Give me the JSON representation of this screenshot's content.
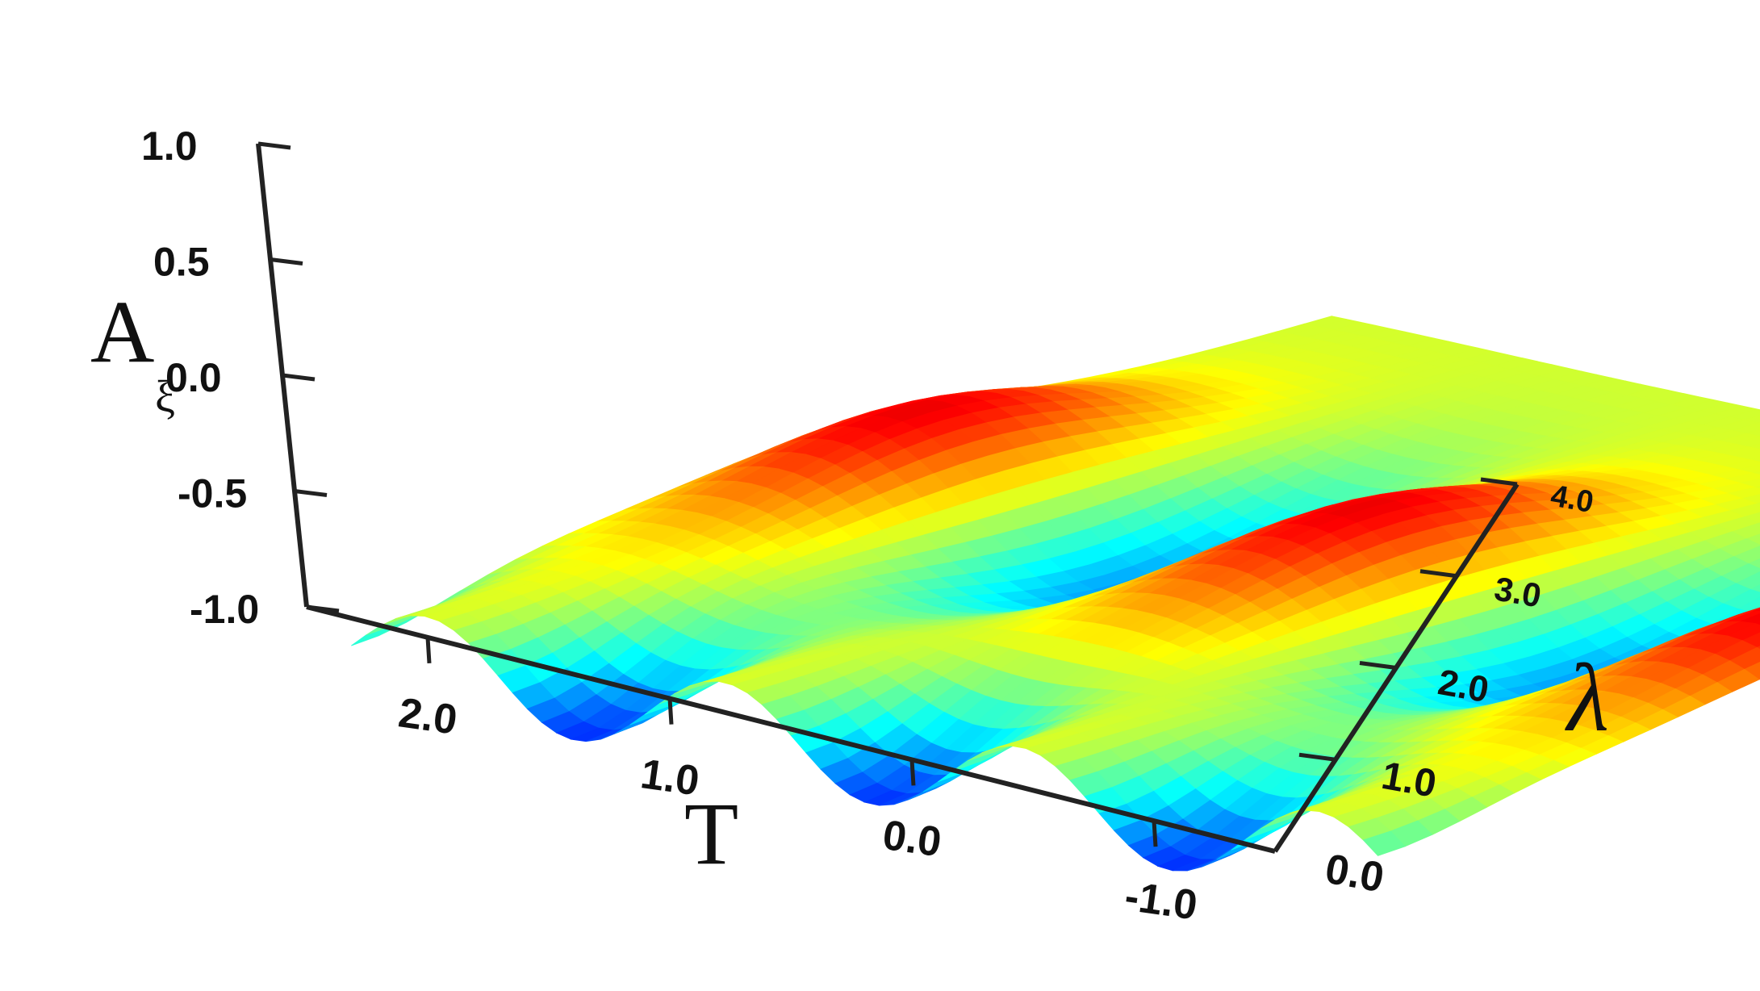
{
  "chart_data": {
    "type": "surface",
    "axes": {
      "z": {
        "label_main": "A",
        "label_sub": "ξ",
        "range": [
          -1.0,
          1.0
        ],
        "ticks": [
          {
            "value": -1.0,
            "label": "-1.0"
          },
          {
            "value": -0.5,
            "label": "-0.5"
          },
          {
            "value": 0.0,
            "label": "0.0"
          },
          {
            "value": 0.5,
            "label": "0.5"
          },
          {
            "value": 1.0,
            "label": "1.0"
          }
        ]
      },
      "x": {
        "label": "T",
        "range": [
          -1.5,
          2.5
        ],
        "reversed": true,
        "ticks": [
          {
            "value": 2.0,
            "label": "2.0"
          },
          {
            "value": 1.0,
            "label": "1.0"
          },
          {
            "value": 0.0,
            "label": "0.0"
          },
          {
            "value": -1.0,
            "label": "-1.0"
          }
        ]
      },
      "y": {
        "label": "λ",
        "range": [
          0.0,
          4.0
        ],
        "ticks": [
          {
            "value": 0.0,
            "label": "0.0"
          },
          {
            "value": 1.0,
            "label": "1.0"
          },
          {
            "value": 2.0,
            "label": "2.0"
          },
          {
            "value": 3.0,
            "label": "3.0"
          },
          {
            "value": 4.0,
            "label": "4.0"
          }
        ]
      }
    },
    "surface": {
      "colormap": "jet",
      "color_limits": [
        -1.0,
        1.0
      ],
      "description_values": {
        "max_peak": 0.9,
        "min_trough": -0.95
      },
      "peaks_at_lambda": [
        {
          "lambda": 2.0,
          "T": 0.6,
          "A": 0.9
        },
        {
          "lambda": 2.0,
          "T": -0.9,
          "A": 0.8
        },
        {
          "lambda": 1.0,
          "T": 1.9,
          "A": 0.55
        }
      ],
      "troughs": [
        {
          "lambda": 0.0,
          "T": -0.4,
          "A": -0.95
        },
        {
          "lambda": 0.2,
          "T": 0.6,
          "A": -0.75
        },
        {
          "lambda": 0.3,
          "T": 1.6,
          "A": -0.8
        }
      ]
    }
  }
}
